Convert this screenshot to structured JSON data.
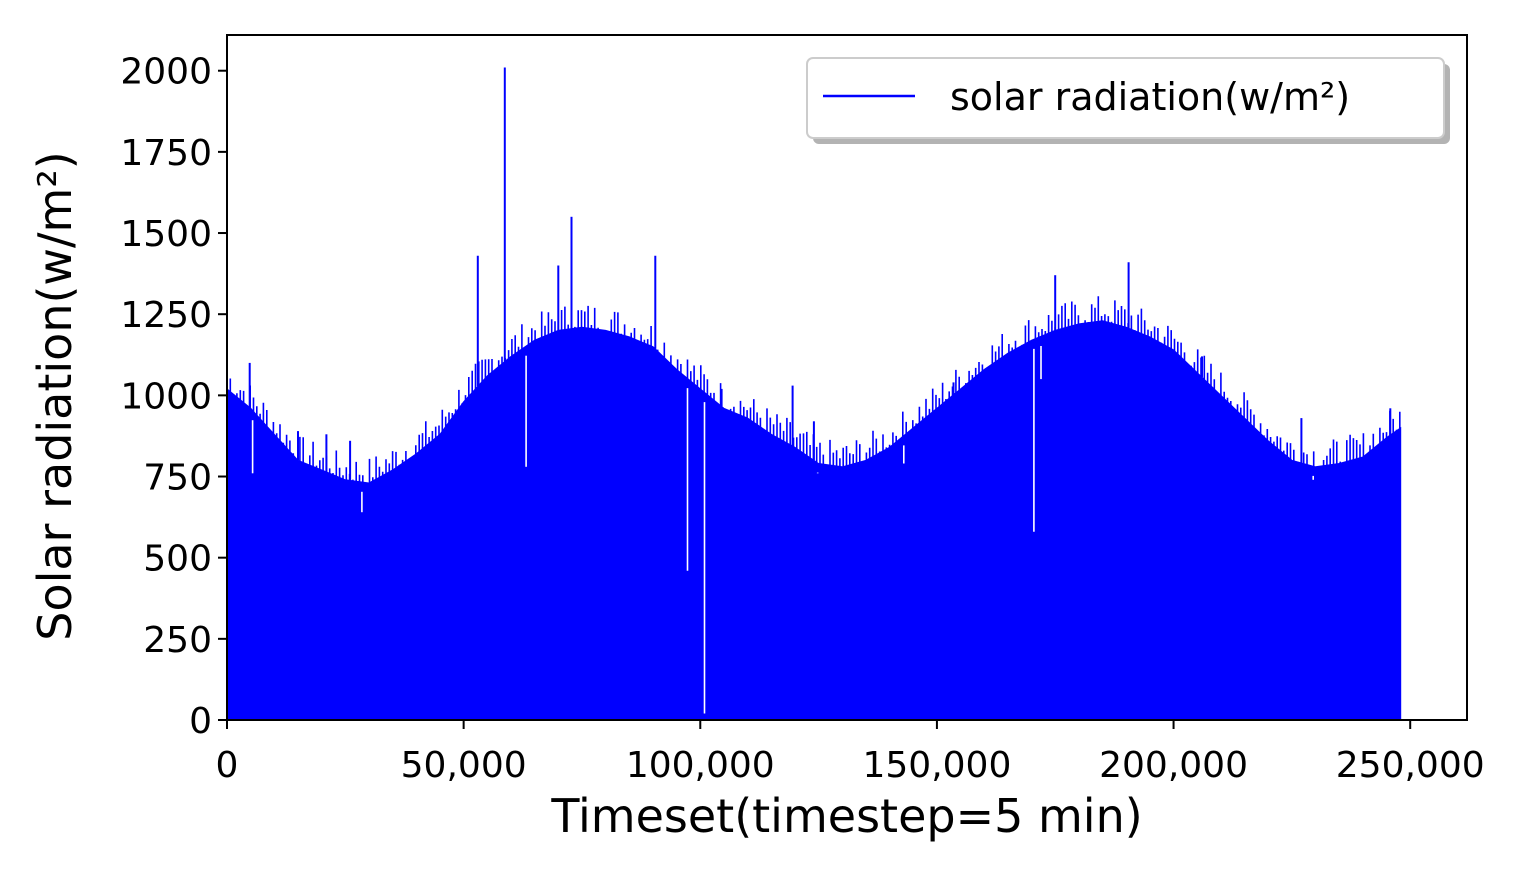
{
  "chart_data": {
    "type": "line",
    "xlabel": "Timeset(timestep=5 min)",
    "ylabel": "Solar radiation(w/m²)",
    "xlim": [
      0,
      262000
    ],
    "ylim": [
      0,
      2110
    ],
    "x_ticks": [
      0,
      50000,
      100000,
      150000,
      200000,
      250000
    ],
    "x_tick_labels": [
      "0",
      "50,000",
      "100,000",
      "150,000",
      "200,000",
      "250,000"
    ],
    "y_ticks": [
      0,
      250,
      500,
      750,
      1000,
      1250,
      1500,
      1750,
      2000
    ],
    "y_tick_labels": [
      "0",
      "250",
      "500",
      "750",
      "1000",
      "1250",
      "1500",
      "1750",
      "2000"
    ],
    "grid": false,
    "legend_position": "top-right",
    "series": [
      {
        "name": "solar radiation(w/m²)",
        "color": "#0000ff",
        "x_range": [
          0,
          248000
        ],
        "fill_from_zero": true,
        "envelope": {
          "x": [
            0,
            5000,
            10000,
            15000,
            20000,
            25000,
            30000,
            35000,
            40000,
            45000,
            50000,
            55000,
            60000,
            65000,
            70000,
            75000,
            80000,
            85000,
            90000,
            95000,
            100000,
            105000,
            110000,
            115000,
            120000,
            125000,
            130000,
            135000,
            140000,
            145000,
            150000,
            155000,
            160000,
            165000,
            170000,
            175000,
            180000,
            185000,
            190000,
            195000,
            200000,
            205000,
            210000,
            215000,
            220000,
            225000,
            230000,
            235000,
            240000,
            245000,
            248000
          ],
          "y": [
            1020,
            960,
            880,
            800,
            770,
            740,
            730,
            770,
            820,
            880,
            980,
            1060,
            1120,
            1170,
            1200,
            1210,
            1200,
            1180,
            1150,
            1080,
            1020,
            960,
            930,
            880,
            840,
            790,
            780,
            800,
            840,
            900,
            960,
            1020,
            1080,
            1130,
            1170,
            1200,
            1220,
            1230,
            1210,
            1180,
            1140,
            1070,
            1000,
            930,
            860,
            800,
            780,
            790,
            810,
            870,
            900
          ]
        },
        "spikes": [
          {
            "x": 4800,
            "y": 1100
          },
          {
            "x": 5400,
            "y": 760
          },
          {
            "x": 15000,
            "y": 890
          },
          {
            "x": 21000,
            "y": 880
          },
          {
            "x": 26000,
            "y": 860
          },
          {
            "x": 28500,
            "y": 640
          },
          {
            "x": 53000,
            "y": 1430
          },
          {
            "x": 58700,
            "y": 2010
          },
          {
            "x": 63200,
            "y": 780
          },
          {
            "x": 72800,
            "y": 1550
          },
          {
            "x": 70000,
            "y": 1400
          },
          {
            "x": 90500,
            "y": 1430
          },
          {
            "x": 97300,
            "y": 460
          },
          {
            "x": 100900,
            "y": 20
          },
          {
            "x": 104500,
            "y": 1020
          },
          {
            "x": 119500,
            "y": 1030
          },
          {
            "x": 124000,
            "y": 920
          },
          {
            "x": 124800,
            "y": 760
          },
          {
            "x": 143000,
            "y": 790
          },
          {
            "x": 153500,
            "y": 1040
          },
          {
            "x": 170500,
            "y": 580
          },
          {
            "x": 172000,
            "y": 1050
          },
          {
            "x": 175000,
            "y": 1370
          },
          {
            "x": 190500,
            "y": 1410
          },
          {
            "x": 206000,
            "y": 1120
          },
          {
            "x": 227000,
            "y": 930
          },
          {
            "x": 229500,
            "y": 740
          },
          {
            "x": 245800,
            "y": 960
          }
        ]
      }
    ]
  }
}
